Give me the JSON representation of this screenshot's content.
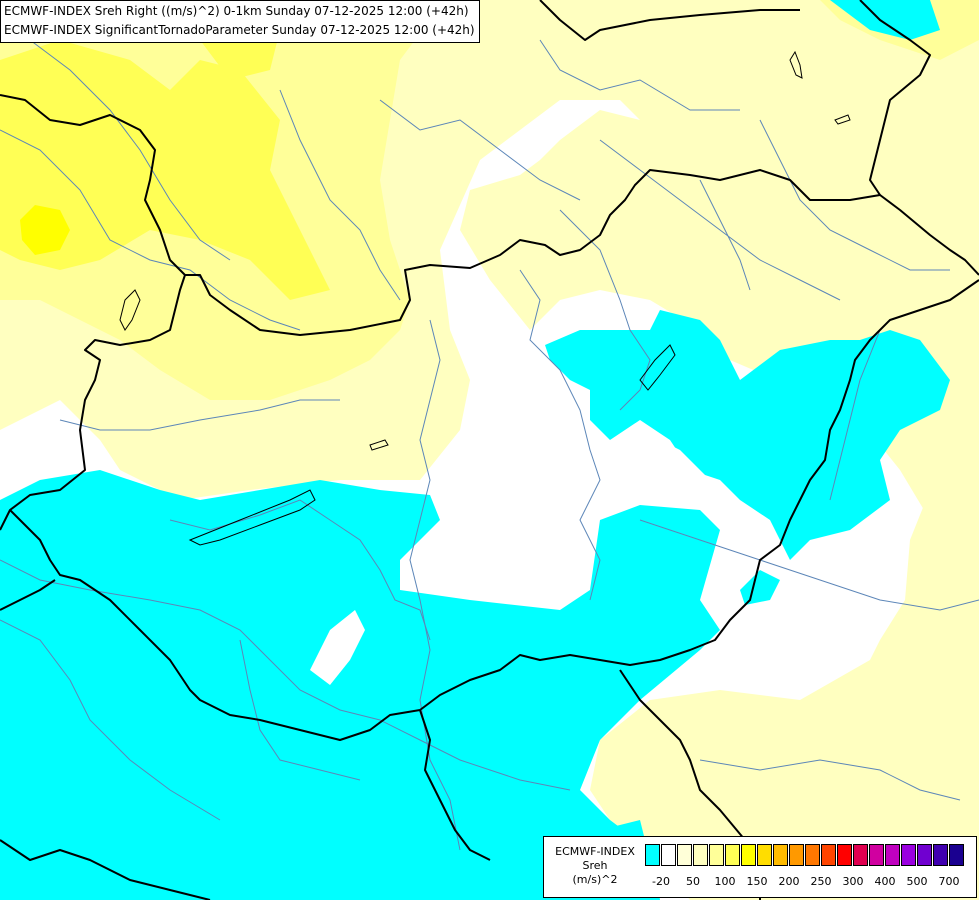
{
  "title": {
    "line1": "ECMWF-INDEX Sreh Right ((m/s)^2) 0-1km Sunday 07-12-2025 12:00 (+42h)",
    "line2": "ECMWF-INDEX SignificantTornadoParameter Sunday 07-12-2025 12:00 (+42h)"
  },
  "colors": {
    "background": "#ffffff",
    "cyan_band": "#00ffff",
    "pale_yellow_band": "#ffffc0",
    "light_yellow_band": "#ffff99",
    "yellow_band": "#ffff55",
    "bright_yellow_band": "#ffff00",
    "border_line": "#000000",
    "river_line": "#5c86b8"
  },
  "legend": {
    "title_line1": "ECMWF-INDEX",
    "title_line2": "Sreh",
    "title_line3": "(m/s)^2",
    "swatch_colors": [
      "#00ffff",
      "#ffffff",
      "#ffffd8",
      "#ffffc0",
      "#ffff99",
      "#ffff55",
      "#ffff00",
      "#ffdd00",
      "#ffbb00",
      "#ff9900",
      "#ff7700",
      "#ff4400",
      "#ff0000",
      "#e00050",
      "#d000a0",
      "#c000c0",
      "#9a00e0",
      "#7000d0",
      "#4000b0",
      "#1a0090"
    ],
    "ticks": [
      "-20",
      "50",
      "100",
      "150",
      "200",
      "250",
      "300",
      "400",
      "500",
      "700"
    ]
  }
}
